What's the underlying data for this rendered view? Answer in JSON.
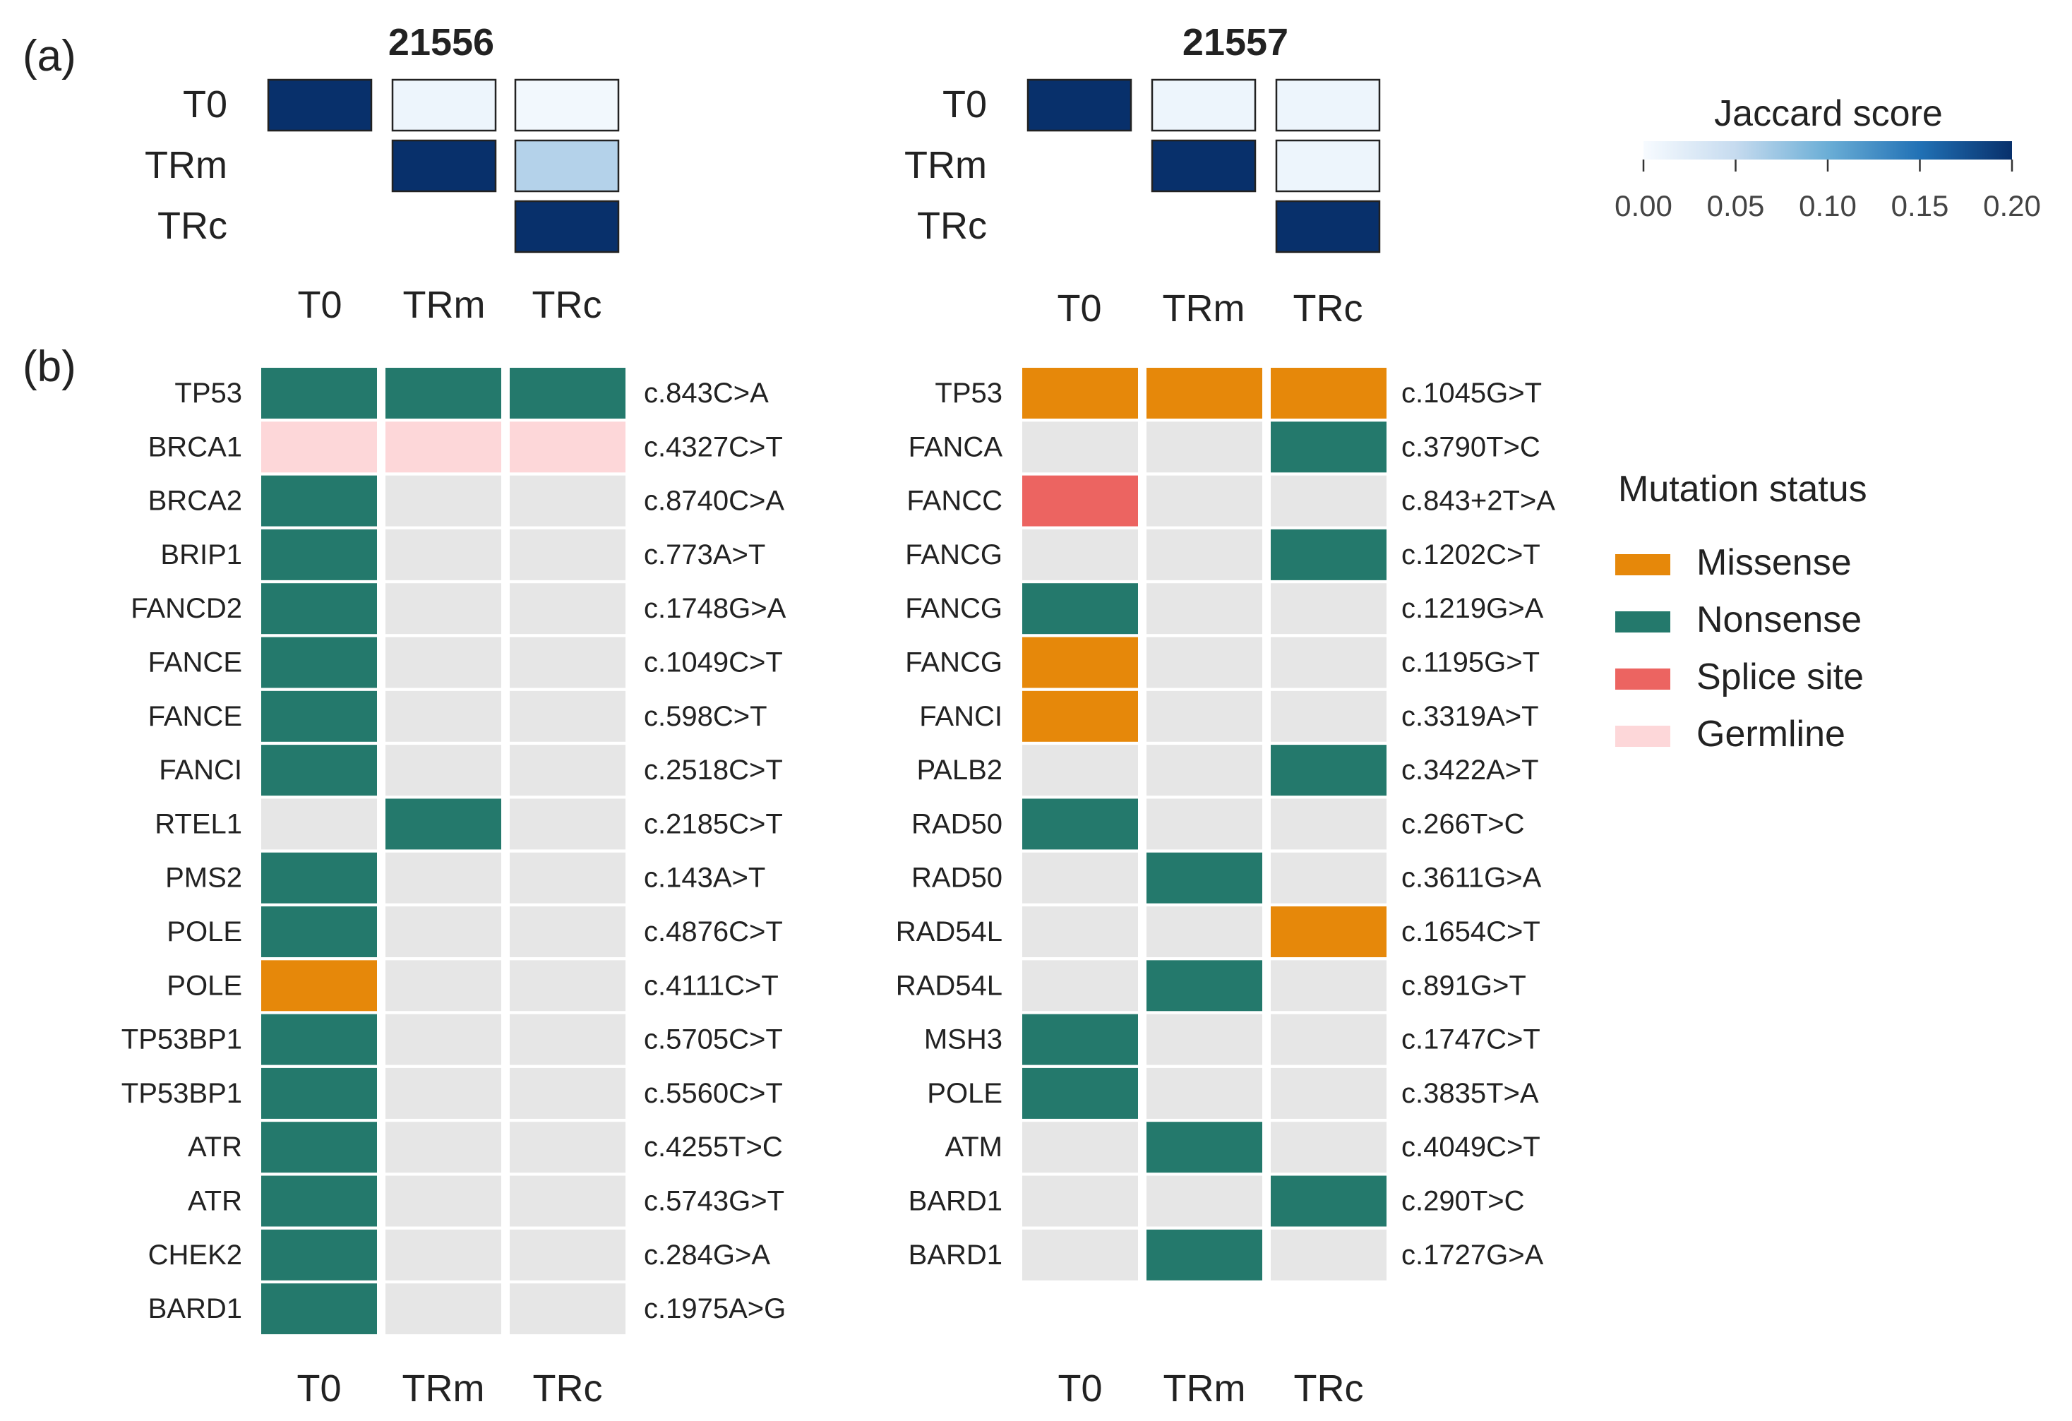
{
  "panel_labels": {
    "a": "(a)",
    "b": "(b)"
  },
  "colors": {
    "missense": "#E6880A",
    "nonsense": "#24796C",
    "splice": "#EC6461",
    "germline": "#FDD7D9",
    "none": "#E6E6E6",
    "jaccard_low": "#F7FBFF",
    "jaccard_high": "#08306B"
  },
  "legend_jaccard": {
    "title": "Jaccard score",
    "ticks": [
      "0.00",
      "0.05",
      "0.10",
      "0.15",
      "0.20"
    ]
  },
  "legend_mutation": {
    "title": "Mutation status",
    "items": [
      {
        "key": "missense",
        "label": "Missense"
      },
      {
        "key": "nonsense",
        "label": "Nonsense"
      },
      {
        "key": "splice",
        "label": "Splice site"
      },
      {
        "key": "germline",
        "label": "Germline"
      }
    ]
  },
  "chart_data": [
    {
      "type": "heatmap",
      "title": "21556",
      "metric": "Jaccard score",
      "rows": [
        "T0",
        "TRm",
        "TRc"
      ],
      "cols": [
        "T0",
        "TRm",
        "TRc"
      ],
      "values": [
        [
          0.2,
          0.01,
          0.005
        ],
        [
          null,
          0.2,
          0.06
        ],
        [
          null,
          null,
          0.2
        ]
      ],
      "range": [
        0,
        0.2
      ]
    },
    {
      "type": "heatmap",
      "title": "21557",
      "metric": "Jaccard score",
      "rows": [
        "T0",
        "TRm",
        "TRc"
      ],
      "cols": [
        "T0",
        "TRm",
        "TRc"
      ],
      "values": [
        [
          0.2,
          0.01,
          0.01
        ],
        [
          null,
          0.2,
          0.01
        ],
        [
          null,
          null,
          0.2
        ]
      ],
      "range": [
        0,
        0.2
      ]
    },
    {
      "type": "heatmap",
      "sample": "21556",
      "metric": "Mutation status",
      "cols": [
        "T0",
        "TRm",
        "TRc"
      ],
      "rows": [
        {
          "gene": "TP53",
          "variant": "c.843C>A",
          "status": [
            "nonsense",
            "nonsense",
            "nonsense"
          ]
        },
        {
          "gene": "BRCA1",
          "variant": "c.4327C>T",
          "status": [
            "germline",
            "germline",
            "germline"
          ]
        },
        {
          "gene": "BRCA2",
          "variant": "c.8740C>A",
          "status": [
            "nonsense",
            null,
            null
          ]
        },
        {
          "gene": "BRIP1",
          "variant": "c.773A>T",
          "status": [
            "nonsense",
            null,
            null
          ]
        },
        {
          "gene": "FANCD2",
          "variant": "c.1748G>A",
          "status": [
            "nonsense",
            null,
            null
          ]
        },
        {
          "gene": "FANCE",
          "variant": "c.1049C>T",
          "status": [
            "nonsense",
            null,
            null
          ]
        },
        {
          "gene": "FANCE",
          "variant": "c.598C>T",
          "status": [
            "nonsense",
            null,
            null
          ]
        },
        {
          "gene": "FANCI",
          "variant": "c.2518C>T",
          "status": [
            "nonsense",
            null,
            null
          ]
        },
        {
          "gene": "RTEL1",
          "variant": "c.2185C>T",
          "status": [
            null,
            "nonsense",
            null
          ]
        },
        {
          "gene": "PMS2",
          "variant": "c.143A>T",
          "status": [
            "nonsense",
            null,
            null
          ]
        },
        {
          "gene": "POLE",
          "variant": "c.4876C>T",
          "status": [
            "nonsense",
            null,
            null
          ]
        },
        {
          "gene": "POLE",
          "variant": "c.4111C>T",
          "status": [
            "missense",
            null,
            null
          ]
        },
        {
          "gene": "TP53BP1",
          "variant": "c.5705C>T",
          "status": [
            "nonsense",
            null,
            null
          ]
        },
        {
          "gene": "TP53BP1",
          "variant": "c.5560C>T",
          "status": [
            "nonsense",
            null,
            null
          ]
        },
        {
          "gene": "ATR",
          "variant": "c.4255T>C",
          "status": [
            "nonsense",
            null,
            null
          ]
        },
        {
          "gene": "ATR",
          "variant": "c.5743G>T",
          "status": [
            "nonsense",
            null,
            null
          ]
        },
        {
          "gene": "CHEK2",
          "variant": "c.284G>A",
          "status": [
            "nonsense",
            null,
            null
          ]
        },
        {
          "gene": "BARD1",
          "variant": "c.1975A>G",
          "status": [
            "nonsense",
            null,
            null
          ]
        }
      ]
    },
    {
      "type": "heatmap",
      "sample": "21557",
      "metric": "Mutation status",
      "cols": [
        "T0",
        "TRm",
        "TRc"
      ],
      "rows": [
        {
          "gene": "TP53",
          "variant": "c.1045G>T",
          "status": [
            "missense",
            "missense",
            "missense"
          ]
        },
        {
          "gene": "FANCA",
          "variant": "c.3790T>C",
          "status": [
            null,
            null,
            "nonsense"
          ]
        },
        {
          "gene": "FANCC",
          "variant": "c.843+2T>A",
          "status": [
            "splice",
            null,
            null
          ]
        },
        {
          "gene": "FANCG",
          "variant": "c.1202C>T",
          "status": [
            null,
            null,
            "nonsense"
          ]
        },
        {
          "gene": "FANCG",
          "variant": "c.1219G>A",
          "status": [
            "nonsense",
            null,
            null
          ]
        },
        {
          "gene": "FANCG",
          "variant": "c.1195G>T",
          "status": [
            "missense",
            null,
            null
          ]
        },
        {
          "gene": "FANCI",
          "variant": "c.3319A>T",
          "status": [
            "missense",
            null,
            null
          ]
        },
        {
          "gene": "PALB2",
          "variant": "c.3422A>T",
          "status": [
            null,
            null,
            "nonsense"
          ]
        },
        {
          "gene": "RAD50",
          "variant": "c.266T>C",
          "status": [
            "nonsense",
            null,
            null
          ]
        },
        {
          "gene": "RAD50",
          "variant": "c.3611G>A",
          "status": [
            null,
            "nonsense",
            null
          ]
        },
        {
          "gene": "RAD54L",
          "variant": "c.1654C>T",
          "status": [
            null,
            null,
            "missense"
          ]
        },
        {
          "gene": "RAD54L",
          "variant": "c.891G>T",
          "status": [
            null,
            "nonsense",
            null
          ]
        },
        {
          "gene": "MSH3",
          "variant": "c.1747C>T",
          "status": [
            "nonsense",
            null,
            null
          ]
        },
        {
          "gene": "POLE",
          "variant": "c.3835T>A",
          "status": [
            "nonsense",
            null,
            null
          ]
        },
        {
          "gene": "ATM",
          "variant": "c.4049C>T",
          "status": [
            null,
            "nonsense",
            null
          ]
        },
        {
          "gene": "BARD1",
          "variant": "c.290T>C",
          "status": [
            null,
            null,
            "nonsense"
          ]
        },
        {
          "gene": "BARD1",
          "variant": "c.1727G>A",
          "status": [
            null,
            "nonsense",
            null
          ]
        }
      ]
    }
  ]
}
